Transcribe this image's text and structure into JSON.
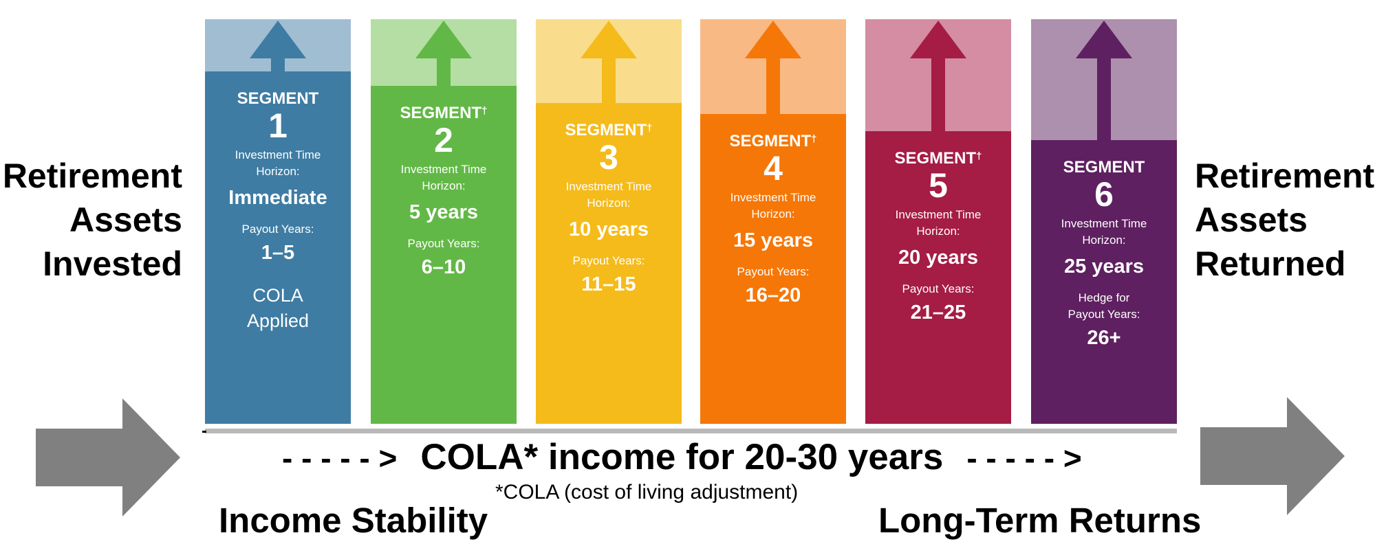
{
  "left_label": [
    "Retirement",
    "Assets",
    "Invested"
  ],
  "right_label": [
    "Retirement",
    "Assets",
    "Returned"
  ],
  "segments": [
    {
      "title": "SEGMENT",
      "dagger": "",
      "number": "1",
      "horizon_label": [
        "Investment Time",
        "Horizon:"
      ],
      "horizon": "Immediate",
      "payout_label": [
        "Payout Years:"
      ],
      "payout": "1–5",
      "note": [
        "COLA",
        "Applied"
      ],
      "color": "#3e7ca3",
      "light": "#a1bdd2"
    },
    {
      "title": "SEGMENT",
      "dagger": "†",
      "number": "2",
      "horizon_label": [
        "Investment Time",
        "Horizon:"
      ],
      "horizon": "5 years",
      "payout_label": [
        "Payout Years:"
      ],
      "payout": "6–10",
      "note": [],
      "color": "#62b846",
      "light": "#b4dea4"
    },
    {
      "title": "SEGMENT",
      "dagger": "†",
      "number": "3",
      "horizon_label": [
        "Investment Time",
        "Horizon:"
      ],
      "horizon": "10 years",
      "payout_label": [
        "Payout Years:"
      ],
      "payout": "11–15",
      "note": [],
      "color": "#f5bb1b",
      "light": "#f9dd8c"
    },
    {
      "title": "SEGMENT",
      "dagger": "†",
      "number": "4",
      "horizon_label": [
        "Investment Time",
        "Horizon:"
      ],
      "horizon": "15 years",
      "payout_label": [
        "Payout Years:"
      ],
      "payout": "16–20",
      "note": [],
      "color": "#f57707",
      "light": "#f9b985"
    },
    {
      "title": "SEGMENT",
      "dagger": "†",
      "number": "5",
      "horizon_label": [
        "Investment Time",
        "Horizon:"
      ],
      "horizon": "20 years",
      "payout_label": [
        "Payout Years:"
      ],
      "payout": "21–25",
      "note": [],
      "color": "#a51c45",
      "light": "#d48da3"
    },
    {
      "title": "SEGMENT",
      "dagger": "",
      "number": "6",
      "horizon_label": [
        "Investment Time",
        "Horizon:"
      ],
      "horizon": "25 years",
      "payout_label": [
        "Hedge for",
        "Payout Years:"
      ],
      "payout": "26+",
      "note": [],
      "color": "#5e2060",
      "light": "#ad90ad"
    }
  ],
  "income": {
    "dashes_left": "- - - - - >",
    "headline": "COLA* income for 20-30 years",
    "dashes_right": "- - - - - >",
    "footnote": "*COLA (cost of living adjustment)"
  },
  "income_stability": "Income Stability",
  "long_term_returns": "Long-Term Returns",
  "arrow_color": "#808080"
}
